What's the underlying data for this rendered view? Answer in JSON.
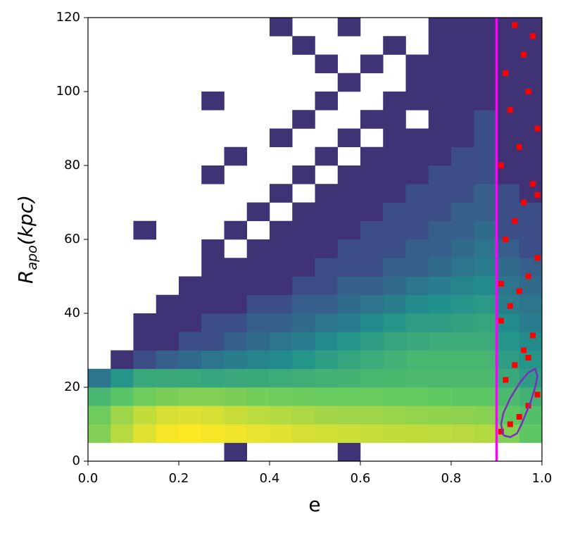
{
  "chart_data": {
    "type": "heatmap2d",
    "xlabel": "e",
    "ylabel_parts": [
      "R",
      "apo",
      "(kpc)"
    ],
    "xlim": [
      0,
      1
    ],
    "ylim": [
      0,
      120
    ],
    "xticks": [
      {
        "value": 0,
        "label": "0.0"
      },
      0.2,
      0.4,
      0.6,
      0.8,
      {
        "value": 1,
        "label": "1.0"
      }
    ],
    "yticks": [
      0,
      20,
      40,
      60,
      80,
      100,
      120
    ],
    "colormap": "viridis",
    "xbins": [
      0,
      0.05,
      0.1,
      0.15,
      0.2,
      0.25,
      0.3,
      0.35,
      0.4,
      0.45,
      0.5,
      0.55,
      0.6,
      0.65,
      0.7,
      0.75,
      0.8,
      0.85,
      0.9,
      0.95,
      1
    ],
    "ybins": [
      0,
      5,
      10,
      15,
      20,
      25,
      30,
      35,
      40,
      45,
      50,
      55,
      60,
      65,
      70,
      75,
      80,
      85,
      90,
      95,
      100,
      105,
      110,
      115,
      120
    ],
    "counts": [
      [
        0,
        0,
        0,
        0,
        0,
        0,
        1,
        0,
        0,
        0,
        0,
        1,
        0,
        0,
        0,
        0,
        0,
        0,
        0,
        0
      ],
      [
        40,
        60,
        80,
        95,
        100,
        95,
        90,
        85,
        80,
        75,
        72,
        70,
        68,
        66,
        64,
        62,
        60,
        58,
        40,
        30
      ],
      [
        35,
        50,
        65,
        75,
        78,
        75,
        68,
        62,
        58,
        55,
        52,
        50,
        50,
        48,
        46,
        45,
        44,
        42,
        30,
        25
      ],
      [
        20,
        28,
        35,
        38,
        40,
        40,
        38,
        36,
        35,
        34,
        33,
        33,
        33,
        32,
        32,
        31,
        30,
        30,
        22,
        18
      ],
      [
        5,
        10,
        15,
        15,
        15,
        14,
        15,
        15,
        16,
        17,
        18,
        19,
        20,
        21,
        22,
        22,
        22,
        22,
        15,
        12
      ],
      [
        0,
        1,
        2,
        3,
        4,
        5,
        6,
        7,
        8,
        10,
        12,
        14,
        16,
        18,
        20,
        20,
        20,
        20,
        12,
        10
      ],
      [
        0,
        0,
        1,
        1,
        2,
        2,
        3,
        4,
        5,
        6,
        8,
        10,
        12,
        14,
        15,
        16,
        16,
        16,
        10,
        8
      ],
      [
        0,
        0,
        1,
        1,
        1,
        2,
        2,
        3,
        3,
        4,
        5,
        6,
        8,
        10,
        12,
        12,
        13,
        14,
        8,
        6
      ],
      [
        0,
        0,
        0,
        1,
        1,
        1,
        1,
        2,
        2,
        3,
        3,
        4,
        5,
        6,
        8,
        9,
        10,
        11,
        6,
        5
      ],
      [
        0,
        0,
        0,
        0,
        1,
        1,
        1,
        1,
        1,
        2,
        2,
        3,
        3,
        4,
        5,
        6,
        7,
        8,
        5,
        4
      ],
      [
        0,
        0,
        0,
        0,
        0,
        1,
        1,
        1,
        1,
        1,
        2,
        2,
        2,
        3,
        3,
        4,
        5,
        6,
        4,
        3
      ],
      [
        0,
        0,
        0,
        0,
        0,
        1,
        0,
        1,
        1,
        1,
        1,
        2,
        2,
        2,
        3,
        3,
        4,
        5,
        3,
        2
      ],
      [
        0,
        0,
        1,
        0,
        0,
        0,
        1,
        0,
        1,
        1,
        1,
        1,
        2,
        2,
        2,
        3,
        3,
        4,
        2,
        2
      ],
      [
        0,
        0,
        0,
        0,
        0,
        0,
        0,
        1,
        0,
        1,
        1,
        1,
        1,
        2,
        2,
        2,
        3,
        3,
        2,
        2
      ],
      [
        0,
        0,
        0,
        0,
        0,
        0,
        0,
        0,
        1,
        0,
        1,
        1,
        1,
        1,
        2,
        2,
        2,
        3,
        2,
        1
      ],
      [
        0,
        0,
        0,
        0,
        0,
        1,
        0,
        0,
        0,
        1,
        0,
        1,
        1,
        1,
        1,
        2,
        2,
        2,
        1,
        1
      ],
      [
        0,
        0,
        0,
        0,
        0,
        0,
        1,
        0,
        0,
        0,
        1,
        0,
        1,
        1,
        1,
        1,
        2,
        2,
        1,
        1
      ],
      [
        0,
        0,
        0,
        0,
        0,
        0,
        0,
        0,
        1,
        0,
        0,
        1,
        0,
        1,
        1,
        1,
        1,
        2,
        1,
        1
      ],
      [
        0,
        0,
        0,
        0,
        0,
        0,
        0,
        0,
        0,
        1,
        0,
        0,
        1,
        1,
        0,
        1,
        1,
        2,
        1,
        1
      ],
      [
        0,
        0,
        0,
        0,
        0,
        1,
        0,
        0,
        0,
        0,
        1,
        0,
        0,
        1,
        1,
        1,
        1,
        1,
        1,
        1
      ],
      [
        0,
        0,
        0,
        0,
        0,
        0,
        0,
        0,
        0,
        0,
        0,
        1,
        0,
        0,
        1,
        1,
        1,
        1,
        1,
        1
      ],
      [
        0,
        0,
        0,
        0,
        0,
        0,
        0,
        0,
        0,
        0,
        1,
        0,
        1,
        0,
        1,
        1,
        1,
        1,
        1,
        1
      ],
      [
        0,
        0,
        0,
        0,
        0,
        0,
        0,
        0,
        0,
        1,
        0,
        0,
        0,
        1,
        0,
        1,
        1,
        1,
        1,
        1
      ],
      [
        0,
        0,
        0,
        0,
        0,
        0,
        0,
        0,
        1,
        0,
        0,
        1,
        0,
        0,
        0,
        1,
        1,
        1,
        1,
        1
      ]
    ],
    "selected": {
      "color": "#ff0000",
      "x": [
        0.91,
        0.93,
        0.95,
        0.97,
        0.99,
        0.92,
        0.94,
        0.96,
        0.98,
        0.91,
        0.93,
        0.95,
        0.97,
        0.99,
        0.92,
        0.94,
        0.96,
        0.98,
        0.91,
        0.95,
        0.99,
        0.93,
        0.97,
        0.92,
        0.96,
        0.98,
        0.94,
        0.99,
        0.91,
        0.97
      ],
      "y": [
        8,
        10,
        12,
        15,
        18,
        22,
        26,
        30,
        34,
        38,
        42,
        46,
        50,
        55,
        60,
        65,
        70,
        75,
        80,
        85,
        90,
        95,
        100,
        105,
        110,
        115,
        118,
        72,
        48,
        28
      ]
    },
    "contour": {
      "color": "#7b2fbe",
      "x": [
        0.915,
        0.93,
        0.945,
        0.955,
        0.965,
        0.975,
        0.985,
        0.99,
        0.985,
        0.97,
        0.95,
        0.93,
        0.915,
        0.91,
        0.915
      ],
      "y": [
        7,
        6.5,
        7.5,
        10,
        13,
        16,
        20,
        23,
        25,
        24,
        21,
        17,
        13,
        10,
        7
      ]
    },
    "vline": {
      "x": 0.9,
      "color": "#ff00ff"
    }
  }
}
